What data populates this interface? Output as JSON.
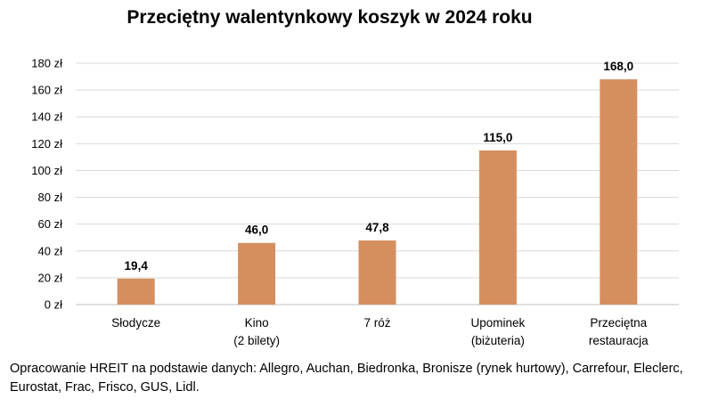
{
  "chart_data": {
    "type": "bar",
    "title": "Przeciętny walentynkowy koszyk w 2024 roku",
    "categories": [
      [
        "Słodycze"
      ],
      [
        "Kino",
        "(2 bilety)"
      ],
      [
        "7 róż"
      ],
      [
        "Upominek",
        "(biżuteria)"
      ],
      [
        "Przeciętna",
        "restauracja"
      ]
    ],
    "values": [
      19.4,
      46.0,
      47.8,
      115.0,
      168.0
    ],
    "data_labels": [
      "19,4",
      "46,0",
      "47,8",
      "115,0",
      "168,0"
    ],
    "ylim": [
      0,
      180
    ],
    "y_ticks": [
      0,
      20,
      40,
      60,
      80,
      100,
      120,
      140,
      160,
      180
    ],
    "y_tick_labels": [
      "0 zł",
      "20 zł",
      "40 zł",
      "60 zł",
      "80 zł",
      "100 zł",
      "120 zł",
      "140 zł",
      "160 zł",
      "180 zł"
    ],
    "grid": true,
    "legend": "none",
    "bar_color": "#D58F5E",
    "grid_color": "#D9D9D9"
  },
  "footer": {
    "source_note": "Opracowanie HREIT na podstawie danych: Allegro, Auchan, Biedronka, Bronisze (rynek hurtowy), Carrefour, Eleclerc, Eurostat, Frac, Frisco, GUS, Lidl."
  }
}
